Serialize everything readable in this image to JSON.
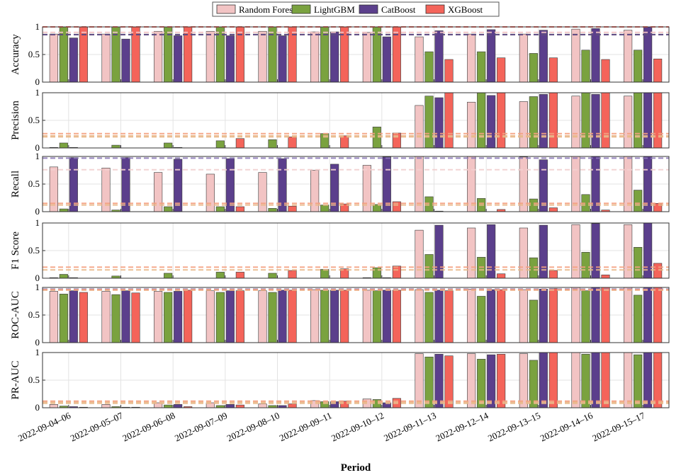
{
  "chart_data": {
    "type": "bar",
    "xlabel": "Period",
    "categories": [
      "2022-09-04–06",
      "2022-09-05–07",
      "2022-09-06–08",
      "2022-09-07–09",
      "2022-09-08–10",
      "2022-09-09–11",
      "2022-09-10–12",
      "2022-09-11–13",
      "2022-09-12–14",
      "2022-09-13–15",
      "2022-09-14–16",
      "2022-09-15–17"
    ],
    "legend": {
      "placement": "top-center",
      "entries": [
        "Random Forest",
        "LightGBM",
        "CatBoost",
        "XGBoost"
      ]
    },
    "colors": {
      "Random Forest": "#f2c4c4",
      "LightGBM": "#7aa23f",
      "CatBoost": "#5b3f8c",
      "XGBoost": "#f4645a"
    },
    "grid": true,
    "ylim": [
      0,
      1
    ],
    "panels": [
      {
        "ylabel": "Accuracy",
        "ticks": [
          "0",
          "0.5",
          "1"
        ],
        "tick_values": [
          0,
          0.5,
          1
        ],
        "series": [
          {
            "name": "Random Forest",
            "values": [
              0.87,
              0.87,
              0.92,
              0.92,
              0.92,
              0.91,
              0.9,
              0.82,
              0.87,
              0.87,
              0.96,
              0.94
            ]
          },
          {
            "name": "LightGBM",
            "values": [
              1.0,
              1.0,
              1.0,
              1.0,
              1.0,
              1.0,
              1.0,
              0.55,
              0.55,
              0.52,
              0.58,
              0.58
            ]
          },
          {
            "name": "CatBoost",
            "values": [
              0.8,
              0.78,
              0.84,
              0.84,
              0.84,
              0.91,
              0.82,
              0.93,
              0.95,
              0.94,
              0.97,
              1.0
            ]
          },
          {
            "name": "XGBoost",
            "values": [
              1.0,
              1.0,
              1.0,
              1.0,
              1.0,
              1.0,
              1.0,
              0.41,
              0.44,
              0.44,
              0.41,
              0.42
            ]
          }
        ],
        "refs": [
          {
            "series": "Random Forest",
            "value": 0.9,
            "color": "#f2c4c4"
          },
          {
            "series": "LightGBM",
            "value": 0.86,
            "color": "#7aa23f"
          },
          {
            "series": "CatBoost",
            "value": 0.86,
            "color": "#5b3f8c"
          },
          {
            "series": "XGBoost",
            "value": 1.0,
            "color": "#f4645a"
          }
        ]
      },
      {
        "ylabel": "Precision",
        "ticks": [
          "0",
          "0.5",
          "1"
        ],
        "tick_values": [
          0,
          0.5,
          1
        ],
        "series": [
          {
            "name": "Random Forest",
            "values": [
              0.01,
              0.0,
              0.0,
              0.0,
              0.0,
              0.0,
              0.0,
              0.77,
              0.83,
              0.84,
              0.94,
              0.94
            ]
          },
          {
            "name": "LightGBM",
            "values": [
              0.09,
              0.05,
              0.09,
              0.13,
              0.15,
              0.26,
              0.38,
              0.94,
              1.0,
              0.93,
              1.0,
              1.0
            ]
          },
          {
            "name": "CatBoost",
            "values": [
              0.01,
              0.0,
              0.01,
              0.0,
              0.0,
              0.0,
              0.0,
              0.91,
              0.95,
              0.97,
              0.97,
              1.0
            ]
          },
          {
            "name": "XGBoost",
            "values": [
              0.0,
              0.0,
              0.0,
              0.17,
              0.2,
              0.22,
              0.27,
              1.0,
              1.0,
              1.0,
              1.0,
              1.0
            ]
          }
        ],
        "refs": [
          {
            "series": "Random Forest",
            "value": 0.2,
            "color": "#e9b98a"
          },
          {
            "series": "LightGBM",
            "value": 0.22,
            "color": "#e9b98a"
          },
          {
            "series": "XGBoost",
            "value": 0.26,
            "color": "#f4a080"
          }
        ]
      },
      {
        "ylabel": "Recall",
        "ticks": [
          "0",
          "0.5",
          "1"
        ],
        "tick_values": [
          0,
          0.5,
          1
        ],
        "series": [
          {
            "name": "Random Forest",
            "values": [
              0.81,
              0.79,
              0.71,
              0.68,
              0.71,
              0.75,
              0.84,
              1.0,
              1.0,
              0.99,
              1.0,
              1.0
            ]
          },
          {
            "name": "LightGBM",
            "values": [
              0.05,
              0.03,
              0.09,
              0.09,
              0.06,
              0.12,
              0.13,
              0.27,
              0.24,
              0.23,
              0.31,
              0.39
            ]
          },
          {
            "name": "CatBoost",
            "values": [
              0.98,
              0.98,
              0.95,
              0.96,
              0.96,
              0.86,
              0.99,
              0.01,
              0.0,
              0.94,
              1.0,
              1.0
            ]
          },
          {
            "name": "XGBoost",
            "values": [
              0.0,
              0.0,
              0.0,
              0.09,
              0.1,
              0.14,
              0.18,
              0.0,
              0.04,
              0.07,
              0.03,
              0.15
            ]
          }
        ],
        "refs": [
          {
            "series": "Random Forest",
            "value": 0.76,
            "color": "#f2d0d0"
          },
          {
            "series": "CatBoost",
            "value": 0.97,
            "color": "#8a78b8"
          },
          {
            "series": "LightGBM",
            "value": 0.12,
            "color": "#e9b98a"
          },
          {
            "series": "XGBoost",
            "value": 0.15,
            "color": "#f4a080"
          }
        ]
      },
      {
        "ylabel": "F1 Score",
        "ticks": [
          "0",
          "0.5",
          "1"
        ],
        "tick_values": [
          0,
          0.5,
          1
        ],
        "series": [
          {
            "name": "Random Forest",
            "values": [
              0.01,
              0.0,
              0.0,
              0.0,
              0.0,
              0.0,
              0.01,
              0.87,
              0.91,
              0.91,
              0.97,
              0.97
            ]
          },
          {
            "name": "LightGBM",
            "values": [
              0.07,
              0.04,
              0.09,
              0.11,
              0.09,
              0.16,
              0.19,
              0.43,
              0.38,
              0.37,
              0.47,
              0.56
            ]
          },
          {
            "name": "CatBoost",
            "values": [
              0.01,
              0.0,
              0.0,
              0.0,
              0.0,
              0.0,
              0.01,
              0.96,
              0.97,
              0.96,
              0.99,
              1.0
            ]
          },
          {
            "name": "XGBoost",
            "values": [
              0.0,
              0.0,
              0.0,
              0.11,
              0.14,
              0.17,
              0.22,
              0.0,
              0.08,
              0.14,
              0.06,
              0.27
            ]
          }
        ],
        "refs": [
          {
            "series": "LightGBM",
            "value": 0.15,
            "color": "#e9b98a"
          },
          {
            "series": "XGBoost",
            "value": 0.2,
            "color": "#f4a080"
          }
        ]
      },
      {
        "ylabel": "ROC-AUC",
        "ticks": [
          "0",
          "0.5",
          "1"
        ],
        "tick_values": [
          0,
          0.5,
          1
        ],
        "series": [
          {
            "name": "Random Forest",
            "values": [
              0.93,
              0.93,
              0.93,
              0.94,
              0.94,
              0.96,
              0.95,
              0.96,
              0.97,
              0.96,
              1.0,
              1.0
            ]
          },
          {
            "name": "LightGBM",
            "values": [
              0.88,
              0.87,
              0.91,
              0.91,
              0.91,
              0.95,
              0.94,
              0.91,
              0.84,
              0.77,
              0.94,
              0.86
            ]
          },
          {
            "name": "CatBoost",
            "values": [
              0.94,
              0.94,
              0.93,
              0.94,
              0.95,
              0.95,
              0.95,
              0.95,
              0.96,
              0.97,
              1.0,
              1.0
            ]
          },
          {
            "name": "XGBoost",
            "values": [
              0.91,
              0.9,
              0.95,
              0.94,
              0.95,
              0.95,
              0.95,
              0.94,
              0.96,
              0.98,
              1.0,
              1.0
            ]
          }
        ],
        "refs": [
          {
            "series": "Random Forest",
            "value": 0.95,
            "color": "#e9b98a"
          },
          {
            "series": "CatBoost",
            "value": 0.97,
            "color": "#8a78b8"
          },
          {
            "series": "XGBoost",
            "value": 0.96,
            "color": "#f4a080"
          }
        ]
      },
      {
        "ylabel": "PR-AUC",
        "ticks": [
          "0",
          "0.5",
          "1"
        ],
        "tick_values": [
          0,
          0.5,
          1
        ],
        "series": [
          {
            "name": "Random Forest",
            "values": [
              0.06,
              0.06,
              0.09,
              0.09,
              0.07,
              0.13,
              0.16,
              0.98,
              0.98,
              0.98,
              1.0,
              1.0
            ]
          },
          {
            "name": "LightGBM",
            "values": [
              0.03,
              0.02,
              0.05,
              0.04,
              0.04,
              0.11,
              0.15,
              0.92,
              0.88,
              0.86,
              0.97,
              0.96
            ]
          },
          {
            "name": "CatBoost",
            "values": [
              0.02,
              0.01,
              0.06,
              0.06,
              0.04,
              0.11,
              0.09,
              0.97,
              0.96,
              1.0,
              1.0,
              1.0
            ]
          },
          {
            "name": "XGBoost",
            "values": [
              0.01,
              0.01,
              0.02,
              0.05,
              0.07,
              0.12,
              0.17,
              0.94,
              0.97,
              1.0,
              1.0,
              1.0
            ]
          }
        ],
        "refs": [
          {
            "series": "Random Forest",
            "value": 0.1,
            "color": "#e9b98a"
          },
          {
            "series": "LightGBM",
            "value": 0.08,
            "color": "#e9b98a"
          },
          {
            "series": "XGBoost",
            "value": 0.12,
            "color": "#f4a080"
          }
        ]
      }
    ]
  }
}
